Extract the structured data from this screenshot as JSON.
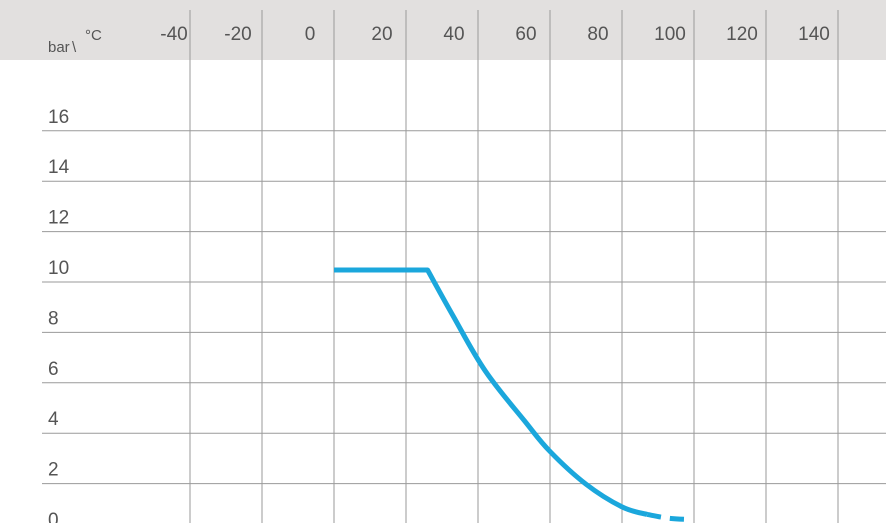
{
  "chart_data": {
    "type": "line",
    "corner_label": {
      "unit_y": "bar",
      "separator": "\\",
      "unit_x": "°C"
    },
    "x_ticks": [
      "-40",
      "-20",
      "0",
      "20",
      "40",
      "60",
      "80",
      "100",
      "120",
      "140"
    ],
    "y_ticks": [
      "16",
      "14",
      "12",
      "10",
      "8",
      "6",
      "4",
      "2",
      "0"
    ],
    "xlim": [
      -50,
      155
    ],
    "ylim": [
      0,
      17
    ],
    "grid": true,
    "series": [
      {
        "style": "solid",
        "color": "#1ba7dc",
        "x": [
          0,
          26,
          33,
          42,
          53,
          60,
          70,
          80,
          87
        ],
        "y": [
          10,
          10,
          8.2,
          6,
          4,
          2.8,
          1.5,
          0.6,
          0.3
        ]
      },
      {
        "style": "dashed",
        "color": "#1ba7dc",
        "x": [
          87,
          93,
          99
        ],
        "y": [
          0.3,
          0.15,
          0.1
        ]
      }
    ],
    "colors": {
      "header_band": "#e2e0df",
      "grid": "#9a9a9a",
      "text": "#555555"
    }
  }
}
